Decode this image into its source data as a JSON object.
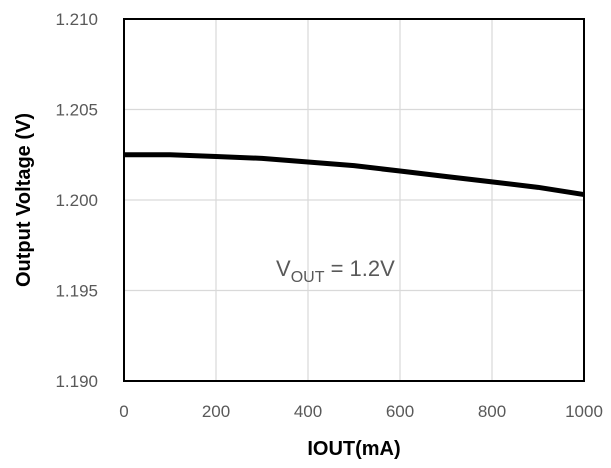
{
  "chart_data": {
    "type": "line",
    "title": "",
    "xlabel": "IOUT(mA)",
    "ylabel": "Output Voltage (V)",
    "xlim": [
      0,
      1000
    ],
    "ylim": [
      1.19,
      1.21
    ],
    "x_ticks": [
      "0",
      "200",
      "400",
      "600",
      "800",
      "1000"
    ],
    "y_ticks": [
      "1.190",
      "1.195",
      "1.200",
      "1.205",
      "1.210"
    ],
    "grid": true,
    "legend": "none",
    "annotation": {
      "prefix": "V",
      "subscript": "OUT",
      "suffix": " = 1.2V"
    },
    "series": [
      {
        "color": "#000000",
        "x": [
          0,
          100,
          200,
          300,
          400,
          500,
          600,
          700,
          800,
          900,
          1000
        ],
        "y": [
          1.2025,
          1.2025,
          1.2024,
          1.2023,
          1.2021,
          1.2019,
          1.2016,
          1.2013,
          1.201,
          1.2007,
          1.2003
        ]
      }
    ]
  }
}
